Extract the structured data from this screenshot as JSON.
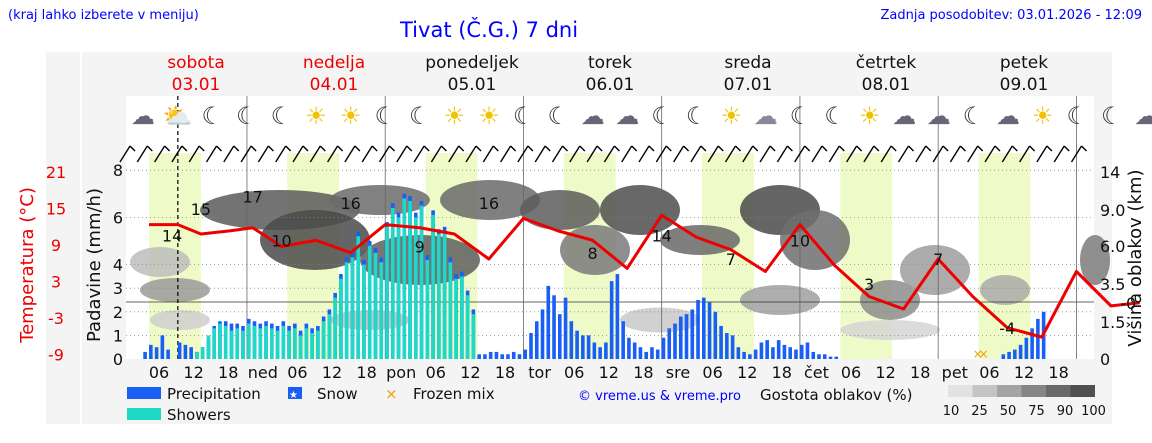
{
  "header": {
    "hint": "(kraj lahko izberete v meniju)",
    "title": "Tivat (Č.G.) 7 dni",
    "updated": "Zadnja posodobitev: 03.01.2026 - 12:09"
  },
  "days": [
    {
      "name": "sobota",
      "date": "03.01",
      "weekend": true
    },
    {
      "name": "nedelja",
      "date": "04.01",
      "weekend": true
    },
    {
      "name": "ponedeljek",
      "date": "05.01",
      "weekend": false
    },
    {
      "name": "torek",
      "date": "06.01",
      "weekend": false
    },
    {
      "name": "sreda",
      "date": "07.01",
      "weekend": false
    },
    {
      "name": "četrtek",
      "date": "08.01",
      "weekend": false
    },
    {
      "name": "petek",
      "date": "09.01",
      "weekend": false
    }
  ],
  "x_axis_labels": [
    "06",
    "12",
    "18",
    "ned",
    "06",
    "12",
    "18",
    "pon",
    "06",
    "12",
    "18",
    "tor",
    "06",
    "12",
    "18",
    "sre",
    "06",
    "12",
    "18",
    "čet",
    "06",
    "12",
    "18",
    "pet",
    "06",
    "12",
    "18"
  ],
  "chart_data": {
    "type": "line+bar",
    "title": "Tivat (Č.G.) 7 dni",
    "ylabel_left_outer": "Temperatura (°C)",
    "ylabel_left_inner": "Padavine (mm/h)",
    "ylabel_right": "Višina oblakov (km)",
    "temp_ticks": [
      "21",
      "15",
      "9",
      "3",
      "-3",
      "-9"
    ],
    "precip_ticks": [
      "8",
      "6",
      "4",
      "3",
      "2",
      "1",
      "0"
    ],
    "cloud_height_ticks": [
      "14",
      "9.0",
      "6.0",
      "3.5",
      "1.5",
      "0"
    ],
    "temperature_series": [
      {
        "t": -5,
        "v": 12.5
      },
      {
        "t": 0,
        "v": 12.5
      },
      {
        "t": 4,
        "v": 11
      },
      {
        "t": 9,
        "v": 11.5
      },
      {
        "t": 13,
        "v": 12
      },
      {
        "t": 18,
        "v": 9
      },
      {
        "t": 24,
        "v": 10
      },
      {
        "t": 30,
        "v": 8
      },
      {
        "t": 36,
        "v": 12.5
      },
      {
        "t": 42,
        "v": 12
      },
      {
        "t": 48,
        "v": 11
      },
      {
        "t": 54,
        "v": 7
      },
      {
        "t": 60,
        "v": 13.5
      },
      {
        "t": 66,
        "v": 11.5
      },
      {
        "t": 72,
        "v": 10
      },
      {
        "t": 78,
        "v": 5.5
      },
      {
        "t": 84,
        "v": 14
      },
      {
        "t": 90,
        "v": 10.5
      },
      {
        "t": 96,
        "v": 8.5
      },
      {
        "t": 102,
        "v": 5
      },
      {
        "t": 108,
        "v": 12.5
      },
      {
        "t": 114,
        "v": 6
      },
      {
        "t": 120,
        "v": 1
      },
      {
        "t": 126,
        "v": -1
      },
      {
        "t": 132,
        "v": 7
      },
      {
        "t": 138,
        "v": 1
      },
      {
        "t": 144,
        "v": -4
      },
      {
        "t": 150,
        "v": -5.5
      },
      {
        "t": 156,
        "v": 5
      },
      {
        "t": 162,
        "v": -0.5
      },
      {
        "t": 167,
        "v": 0
      }
    ],
    "temperature_labels": [
      {
        "t": -1,
        "text": "14"
      },
      {
        "t": 4,
        "text": "15"
      },
      {
        "t": 13,
        "text": "17"
      },
      {
        "t": 18,
        "text": "10"
      },
      {
        "t": 30,
        "text": "16"
      },
      {
        "t": 42,
        "text": "9"
      },
      {
        "t": 54,
        "text": "16"
      },
      {
        "t": 72,
        "text": "8"
      },
      {
        "t": 84,
        "text": "14"
      },
      {
        "t": 96,
        "text": "7"
      },
      {
        "t": 108,
        "text": "10"
      },
      {
        "t": 120,
        "text": "3"
      },
      {
        "t": 132,
        "text": "7"
      },
      {
        "t": 144,
        "text": "-4"
      },
      {
        "t": 165,
        "text": "-0"
      }
    ],
    "precipitation_mm": [
      0.3,
      0.6,
      0.5,
      1.0,
      0.4,
      0,
      0.7,
      0.6,
      0.5,
      0.3,
      0.5,
      0.8,
      1.4,
      1.6,
      1.6,
      1.5,
      1.5,
      1.4,
      1.7,
      1.6,
      1.5,
      1.6,
      1.5,
      1.4,
      1.6,
      1.4,
      1.5,
      1.2,
      1.5,
      1.3,
      1.4,
      1.8,
      2.1,
      2.8,
      3.6,
      4.3,
      4.5,
      5.4,
      4.2,
      5.0,
      4.7,
      4.3,
      5.8,
      6.6,
      6.2,
      7.0,
      6.9,
      6.2,
      6.7,
      4.4,
      6.3,
      5.5,
      5.6,
      4.3,
      3.6,
      3.7,
      2.9,
      2.1,
      0.2,
      0.2,
      0.3,
      0.3,
      0.2,
      0.2,
      0.3,
      0.2,
      0.4,
      1.1,
      1.6,
      2.1,
      3.1,
      2.7,
      1.9,
      2.6,
      1.6,
      1.2,
      1.0,
      1.0,
      0.7,
      0.5,
      0.7,
      3.3,
      3.6,
      1.6,
      0.9,
      0.7,
      0.5,
      0.3,
      0.5,
      0.4,
      0.9,
      1.3,
      1.5,
      1.8,
      1.9,
      2.1,
      2.5,
      2.6,
      2.4,
      2.0,
      1.4,
      1.1,
      1.0,
      0.5,
      0.3,
      0.2,
      0.4,
      0.7,
      0.8,
      0.5,
      0.8,
      0.6,
      0.5,
      0.4,
      0.6,
      0.7,
      0.3,
      0.2,
      0.2,
      0.1,
      0.1,
      0,
      0,
      0,
      0,
      0,
      0,
      0,
      0,
      0,
      0,
      0,
      0,
      0,
      0,
      0,
      0,
      0,
      0,
      0,
      0,
      0,
      0,
      0,
      0,
      0,
      0,
      0,
      0,
      0.2,
      0.3,
      0.4,
      0.6,
      0.9,
      1.3,
      1.7,
      2.0
    ],
    "showers_mm": [
      0,
      0,
      0,
      0,
      0,
      0,
      0,
      0,
      0,
      0.3,
      0.5,
      1.0,
      1.3,
      1.5,
      1.4,
      1.2,
      1.3,
      1.2,
      1.5,
      1.4,
      1.3,
      1.4,
      1.3,
      1.2,
      1.4,
      1.2,
      1.3,
      1.0,
      1.3,
      1.1,
      1.2,
      1.6,
      1.9,
      2.6,
      3.4,
      4.1,
      4.3,
      5.2,
      4.0,
      4.8,
      4.5,
      4.1,
      5.6,
      6.4,
      6.0,
      6.8,
      6.7,
      6.0,
      6.5,
      4.2,
      6.1,
      5.3,
      5.4,
      4.1,
      3.4,
      3.5,
      2.7,
      1.9,
      0,
      0,
      0,
      0,
      0,
      0,
      0,
      0,
      0,
      0,
      0,
      0,
      0,
      0
    ],
    "snow_markers_t": [
      162,
      163,
      164,
      165,
      166,
      167
    ],
    "frozen_mix_markers_t": [
      138,
      139
    ],
    "night_marker_t": 0,
    "cloud_density_legend": [
      "10",
      "25",
      "50",
      "75",
      "90",
      "100"
    ]
  },
  "weather_icons": [
    "rain-cloud",
    "sun-cloud",
    "storm-moon",
    "storm-moon",
    "storm-moon",
    "storm-sun",
    "storm-sun",
    "storm-moon",
    "storm-moon",
    "storm-sun",
    "storm-sun",
    "storm-moon",
    "moon",
    "rain-cloud",
    "rain-cloud",
    "storm-moon",
    "moon",
    "sun",
    "cloud",
    "moon",
    "moon",
    "sun",
    "rain-cloud",
    "rain-cloud",
    "moon",
    "rain-cloud",
    "sun",
    "moon",
    "moon",
    "snow-cloud",
    "sun-cloud",
    "snow-cloud"
  ],
  "legend": {
    "precipitation": "Precipitation",
    "showers": "Showers",
    "snow": "Snow",
    "frozen_mix": "Frozen mix",
    "credit": "© vreme.us & vreme.pro",
    "cloud_density": "Gostota oblakov (%)"
  },
  "colors": {
    "precip": "#1a5ff5",
    "showers": "#1dd9c6",
    "temp_line": "#ee0000",
    "weekend": "#ee0000",
    "title": "#0000ff",
    "day_band": "#eefbc8"
  }
}
